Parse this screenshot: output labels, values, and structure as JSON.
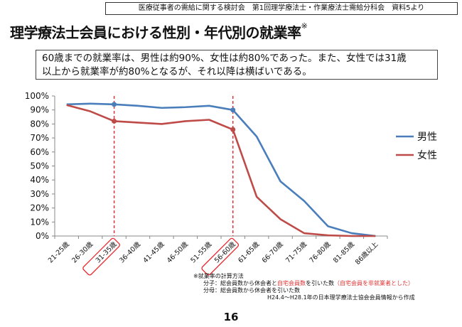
{
  "header": {
    "source": "医療従事者の需給に関する検討会　第1回理学療法士・作業療法士需給分科会　資料5より",
    "title": "理学療法士会員における性別・年代別の就業率",
    "title_mark": "※"
  },
  "summary": {
    "line1": "60歳までの就業率は、男性は約90%、女性は約80%であった。また、女性では31歳",
    "line2": "以上から就業率が約80%となるが、それ以降は横ばいである。"
  },
  "chart_data": {
    "type": "line",
    "categories": [
      "21-25歳",
      "26-30歳",
      "31-35歳",
      "36-40歳",
      "41-45歳",
      "46-50歳",
      "51-55歳",
      "56-60歳",
      "61-65歳",
      "66-70歳",
      "71-75歳",
      "76-80歳",
      "81-85歳",
      "86歳以上"
    ],
    "series": [
      {
        "name": "男性",
        "color": "#4a7ebb",
        "values": [
          94,
          94.5,
          94,
          93,
          91.5,
          92,
          93,
          90,
          71,
          39,
          25,
          7,
          2,
          0
        ]
      },
      {
        "name": "女性",
        "color": "#be4b48",
        "values": [
          93.5,
          89,
          82,
          81,
          80,
          82,
          83,
          76,
          28,
          12,
          2,
          0.5,
          0,
          0
        ]
      }
    ],
    "y_ticks": [
      "0%",
      "10%",
      "20%",
      "30%",
      "40%",
      "50%",
      "60%",
      "70%",
      "80%",
      "90%",
      "100%"
    ],
    "ylim": [
      0,
      100
    ],
    "highlighted_categories": [
      "31-35歳",
      "56-60歳"
    ],
    "legend_position": "right",
    "grid": false
  },
  "notes": {
    "heading": "※就業率の計算方法",
    "numerator_prefix": "分子：総会員数から休会者と",
    "numerator_red1": "自宅会員数",
    "numerator_mid": "を引いた数",
    "numerator_red2": "（自宅会員を非就業者とした）",
    "denominator": "分母：総会員数から休会者を引いた数",
    "source": "H24.4～H28.1年の日本理学療法士協会会員情報から作成"
  },
  "page_number": "16"
}
